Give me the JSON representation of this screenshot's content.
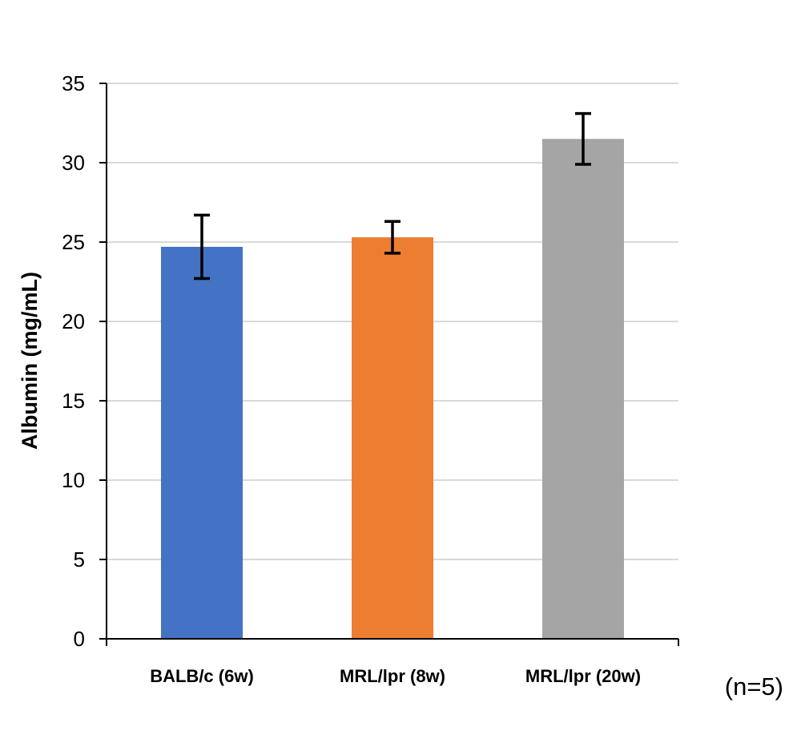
{
  "chart_data": {
    "type": "bar",
    "categories": [
      "BALB/c (6w)",
      "MRL/lpr (8w)",
      "MRL/lpr (20w)"
    ],
    "values": [
      24.7,
      25.3,
      31.5
    ],
    "errors": [
      2.0,
      1.0,
      1.6
    ],
    "colors": [
      "#4472C4",
      "#ED7D31",
      "#A5A5A5"
    ],
    "title": "",
    "xlabel": "",
    "ylabel": "Albumin (mg/mL)",
    "ylim": [
      0,
      35
    ],
    "yticks": [
      0,
      5,
      10,
      15,
      20,
      25,
      30,
      35
    ],
    "grid": true,
    "annotation": "(n=5)"
  }
}
